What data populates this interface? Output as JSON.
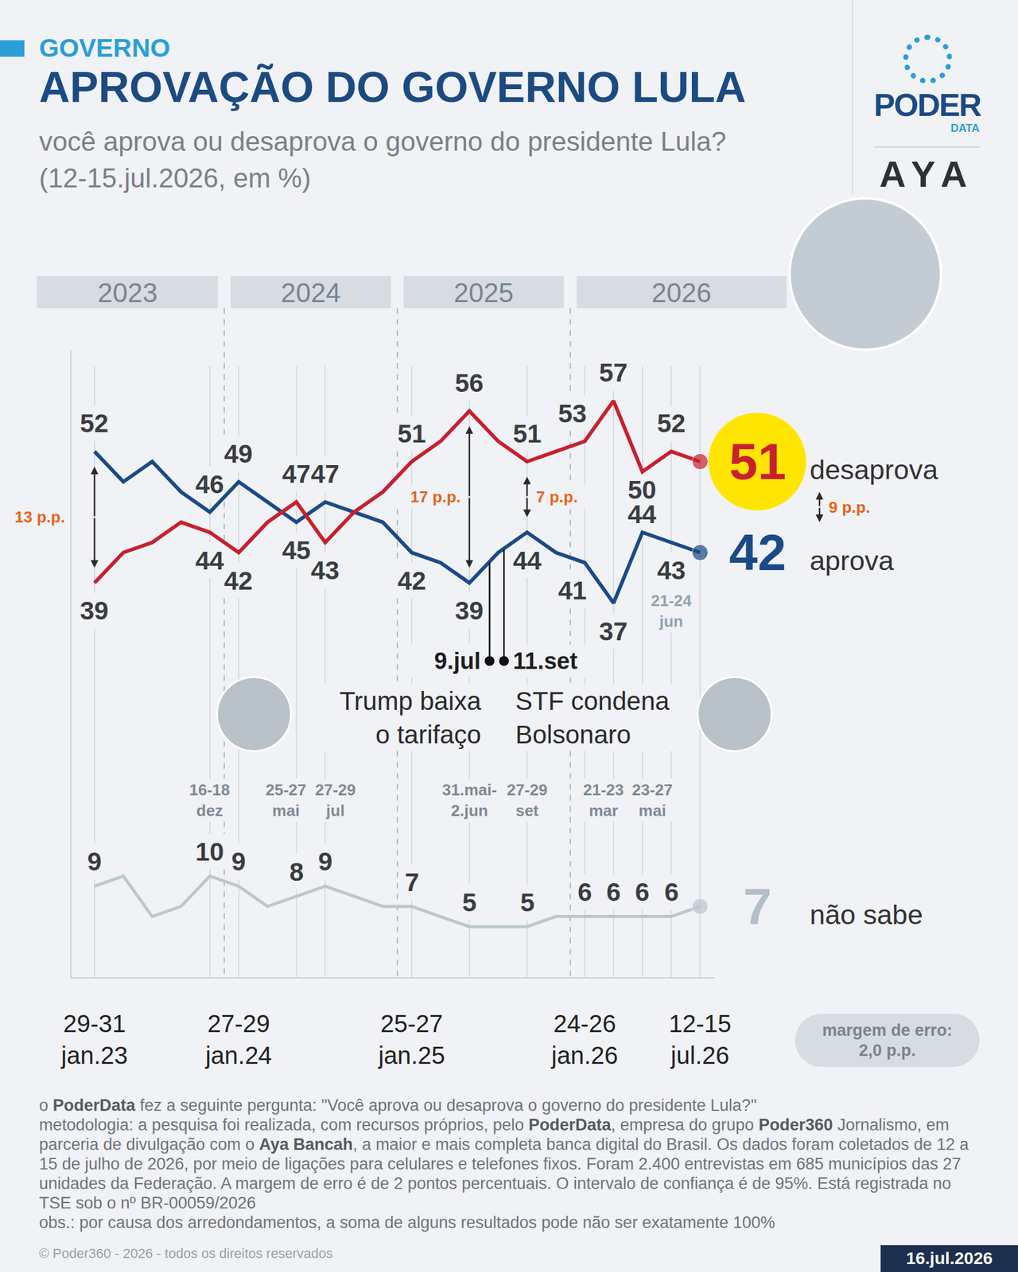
{
  "chart_data": {
    "type": "line",
    "section": "GOVERNO",
    "title": "APROVAÇÃO DO GOVERNO LULA",
    "subtitle": "você aprova ou desaprova o governo do presidente Lula?",
    "subtitle2": "(12-15.jul.2026, em %)",
    "categories": [
      "29-31 jan.23",
      null,
      null,
      null,
      null,
      "27-29 jan.24",
      null,
      null,
      null,
      null,
      null,
      "25-27 jan.25",
      null,
      null,
      null,
      null,
      null,
      "24-26 jan.26",
      null,
      null,
      null,
      "12-15 jul.26"
    ],
    "series": [
      {
        "name": "desaprova",
        "color": "#c8202f",
        "values": [
          39,
          42,
          43,
          45,
          44,
          42,
          45,
          47,
          43,
          46,
          48,
          51,
          53,
          56,
          53,
          51,
          52,
          53,
          57,
          50,
          52,
          51
        ],
        "value_labels": [
          "39",
          null,
          null,
          null,
          "44",
          "42",
          null,
          "47",
          "43",
          null,
          null,
          "51",
          null,
          "56",
          null,
          "51",
          null,
          "53",
          "57",
          "50",
          "52",
          "51"
        ]
      },
      {
        "name": "aprova",
        "color": "#1b4a86",
        "values": [
          52,
          49,
          51,
          48,
          46,
          49,
          47,
          45,
          47,
          46,
          45,
          42,
          41,
          39,
          42,
          44,
          42,
          41,
          37,
          44,
          43,
          42
        ],
        "value_labels": [
          "52",
          null,
          null,
          null,
          "46",
          "49",
          null,
          "45",
          "47",
          null,
          null,
          "42",
          null,
          "39",
          null,
          "44",
          null,
          "41",
          "37",
          "44",
          "43",
          "42"
        ]
      },
      {
        "name": "não sabe",
        "color": "#bcc6ce",
        "values": [
          9,
          10,
          6,
          7,
          10,
          9,
          7,
          8,
          9,
          8,
          7,
          7,
          6,
          5,
          5,
          5,
          6,
          6,
          6,
          6,
          6,
          7
        ],
        "value_labels": [
          "9",
          null,
          null,
          null,
          "10",
          "9",
          null,
          "8",
          "9",
          null,
          null,
          "7",
          null,
          "5",
          null,
          "5",
          null,
          "6",
          "6",
          "6",
          "6",
          "7"
        ]
      }
    ],
    "ylim": [
      0,
      62
    ],
    "yticks": [],
    "tick_labels": "x",
    "grid": true,
    "years": [
      {
        "label": "2023",
        "first": 0,
        "last": 4
      },
      {
        "label": "2024",
        "first": 5,
        "last": 10
      },
      {
        "label": "2025",
        "first": 11,
        "last": 16
      },
      {
        "label": "2026",
        "first": 17,
        "last": 21
      }
    ],
    "date_notes": [
      {
        "index": 4,
        "lines": [
          "16-18",
          "dez"
        ]
      },
      {
        "index": 7,
        "lines": [
          "25-27",
          "mai"
        ]
      },
      {
        "index": 8,
        "lines": [
          "27-29",
          "jul"
        ]
      },
      {
        "index": 13,
        "lines": [
          "31.mai-",
          "2.jun"
        ]
      },
      {
        "index": 15,
        "lines": [
          "27-29",
          "set"
        ]
      },
      {
        "index": 18,
        "lines": [
          "21-23",
          "mar"
        ]
      },
      {
        "index": 19,
        "lines": [
          "23-27",
          "mai"
        ]
      }
    ],
    "point_note": {
      "index": 20,
      "lines": [
        "21-24",
        "jun"
      ]
    },
    "gaps": [
      {
        "index": 0,
        "label": "13 p.p."
      },
      {
        "index": 13,
        "label": "17 p.p."
      },
      {
        "index": 15,
        "label": "7 p.p."
      },
      {
        "index": 21,
        "label": "9 p.p."
      }
    ],
    "events": [
      {
        "x": 13.7,
        "date": "9.jul",
        "lines": [
          "Trump baixa",
          "o tarifaço"
        ]
      },
      {
        "x": 14.2,
        "date": "11.set",
        "lines": [
          "STF condena",
          "Bolsonaro"
        ]
      }
    ],
    "error_margin": [
      "margem de erro:",
      "2,0 p.p."
    ],
    "logos": {
      "poder": "PODER",
      "data": "DATA",
      "aya": "AYA"
    },
    "footer": {
      "question": "o PoderData fez a seguinte pergunta: \"Você aprova ou desaprova o governo do presidente Lula?\"",
      "methodology": "metodologia: a pesquisa foi realizada, com recursos próprios, pelo PoderData, empresa do grupo Poder360 Jornalismo, em parceria de divulgação com o Aya Bancah, a maior e mais completa banca digital do Brasil. Os dados foram coletados de 12 a 15 de julho de 2026, por meio de ligações para celulares e telefones fixos. Foram 2.400 entrevistas em 685 municípios das 27 unidades da Federação. A margem de erro é de 2 pontos percentuais. O intervalo de confiança é de 95%. Está registrada no TSE sob o nº BR-00059/2026",
      "obs": "obs.: por causa dos arredondamentos, a soma de alguns resultados pode não ser exatamente 100%",
      "bold_terms": [
        "PoderData",
        "Poder360",
        "Aya Bancah"
      ]
    },
    "copyright": "© Poder360 - 2026 - todos os direitos reservados",
    "date": "16.jul.2026"
  }
}
